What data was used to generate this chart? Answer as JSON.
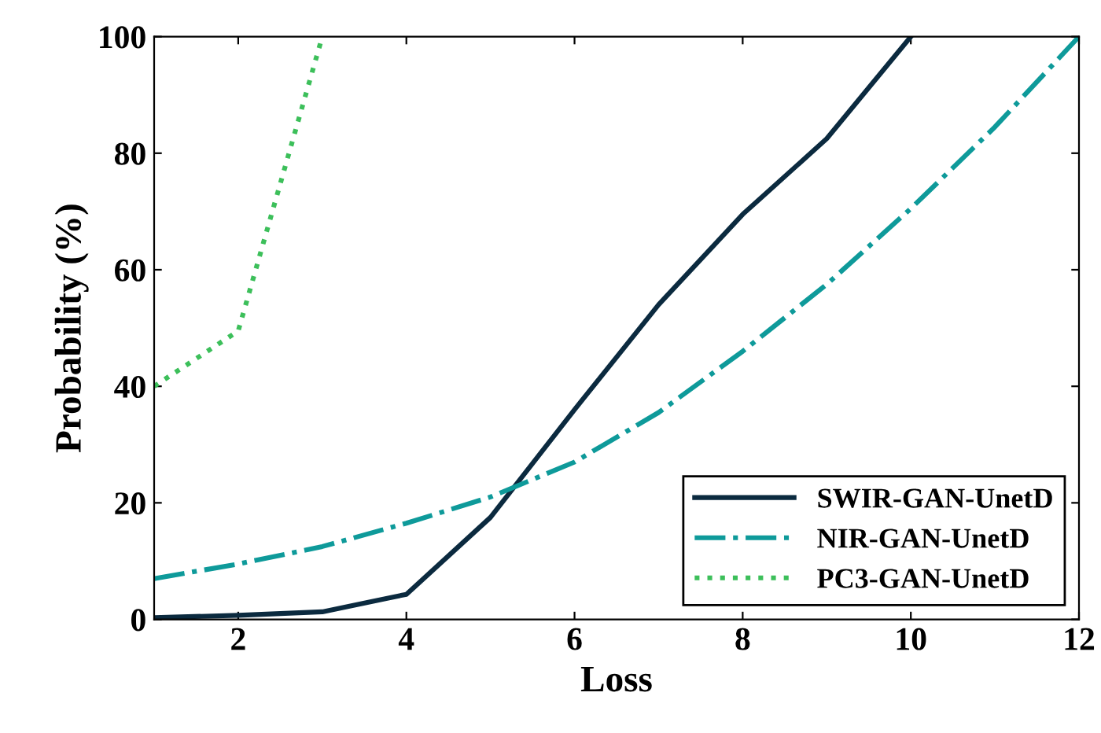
{
  "chart_data": {
    "type": "line",
    "xlabel": "Loss",
    "ylabel": "Probability (%)",
    "xlim": [
      1,
      12
    ],
    "xticks": [
      2,
      4,
      6,
      8,
      10,
      12
    ],
    "ylim": [
      0,
      100
    ],
    "yticks": [
      0,
      20,
      40,
      60,
      80,
      100
    ],
    "grid": false,
    "legend": "bottom right",
    "series": [
      {
        "name": "SWIR-GAN-UnetD",
        "color": "#0b2a3f",
        "line_style": "solid",
        "x": [
          1,
          2,
          3,
          4,
          5,
          6,
          7,
          8,
          9,
          10
        ],
        "values": [
          0.3,
          0.7,
          1.3,
          4.3,
          17.5,
          36,
          54,
          69.5,
          82.5,
          100
        ]
      },
      {
        "name": "NIR-GAN-UnetD",
        "color": "#0e9a9a",
        "line_style": "dashdot",
        "x": [
          1,
          2,
          3,
          4,
          5,
          6,
          7,
          8,
          9,
          10,
          11,
          12
        ],
        "values": [
          7,
          9.5,
          12.5,
          16.5,
          21,
          27,
          35.5,
          46,
          57.5,
          70.5,
          84.5,
          100
        ]
      },
      {
        "name": "PC3-GAN-UnetD",
        "color": "#3cbf5a",
        "line_style": "dotted",
        "x": [
          1,
          2,
          3
        ],
        "values": [
          40,
          49.5,
          100
        ]
      }
    ]
  }
}
